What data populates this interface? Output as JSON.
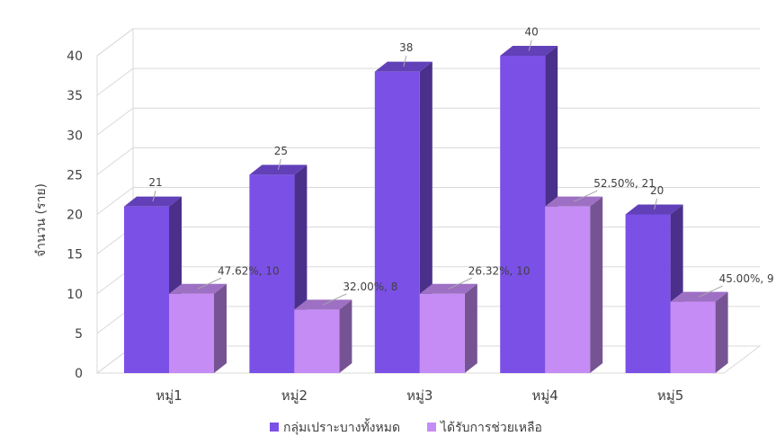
{
  "chart_data": {
    "type": "bar",
    "title": "",
    "xlabel": "",
    "ylabel": "จำนวน (ราย)",
    "ylim": [
      0,
      40
    ],
    "yticks": [
      0,
      5,
      10,
      15,
      20,
      25,
      30,
      35,
      40
    ],
    "categories": [
      "หมู่1",
      "หมู่2",
      "หมู่3",
      "หมู่4",
      "หมู่5"
    ],
    "series": [
      {
        "name": "กลุ่มเปราะบางทั้งหมด",
        "values": [
          21,
          25,
          38,
          40,
          20
        ],
        "labels": [
          "21",
          "25",
          "38",
          "40",
          "20"
        ],
        "color": "#7B50E6"
      },
      {
        "name": "ได้รับการช่วยเหลือ",
        "values": [
          10,
          8,
          10,
          21,
          9
        ],
        "labels": [
          "47.62%, 10",
          "32.00%, 8",
          "26.32%, 10",
          "52.50%, 21",
          "45.00%, 9"
        ],
        "color": "#C58CF5"
      }
    ],
    "legend_position": "bottom",
    "grid": true,
    "style": "3d"
  }
}
